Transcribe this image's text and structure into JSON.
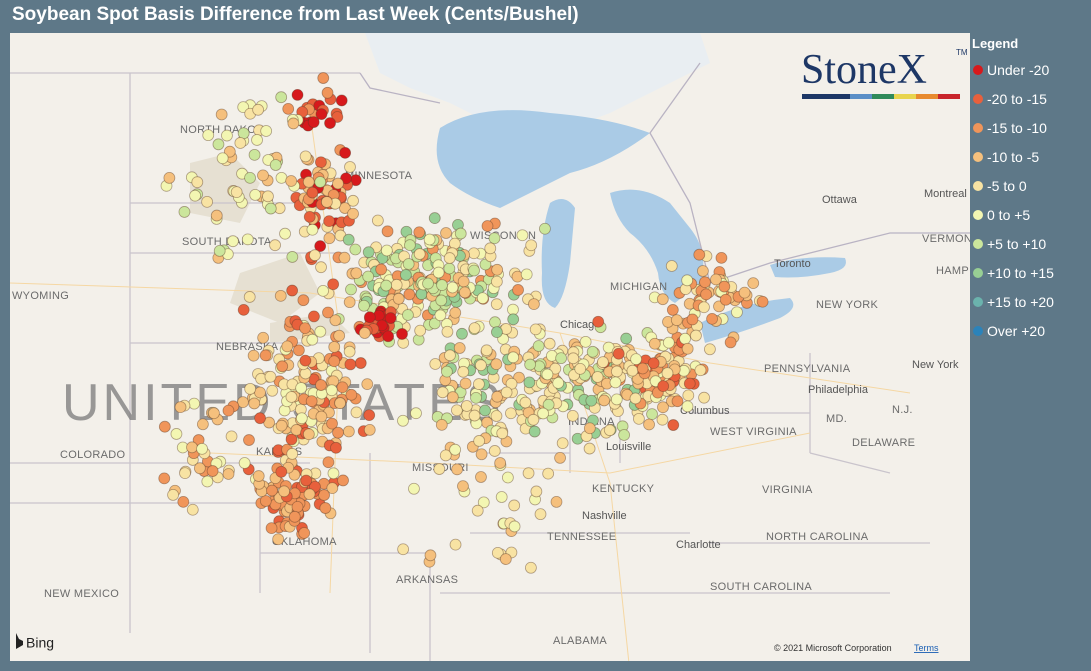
{
  "title": "Soybean Spot Basis Difference from Last Week (Cents/Bushel)",
  "logo": {
    "text": "StoneX",
    "mark": "TM"
  },
  "legend": {
    "title": "Legend",
    "items": [
      {
        "label": "Under -20",
        "color": "#d7191c"
      },
      {
        "label": "-20 to -15",
        "color": "#e8603c"
      },
      {
        "label": "-15 to -10",
        "color": "#f0955a"
      },
      {
        "label": "-10 to -5",
        "color": "#f5c07d"
      },
      {
        "label": "-5 to 0",
        "color": "#f8e3a3"
      },
      {
        "label": "0 to +5",
        "color": "#f3f6b2"
      },
      {
        "label": "+5 to +10",
        "color": "#cbe69c"
      },
      {
        "label": "+10 to +15",
        "color": "#98cf94"
      },
      {
        "label": "+15 to +20",
        "color": "#6bb3ad"
      },
      {
        "label": "Over +20",
        "color": "#2b83ba"
      }
    ]
  },
  "map": {
    "labels": [
      "NORTH DAKOTA",
      "MINNESOTA",
      "SOUTH DAKOTA",
      "WYOMING",
      "NEBRASKA",
      "UNITED STATES",
      "COLORADO",
      "KANSAS",
      "MISSOURI",
      "OKLAHOMA",
      "NEW MEXICO",
      "ARKANSAS",
      "TENNESSEE",
      "ALABAMA",
      "KENTUCKY",
      "INDIANA",
      "WISCONSIN",
      "MICHIGAN",
      "WEST VIRGINIA",
      "VIRGINIA",
      "NORTH CAROLINA",
      "SOUTH CAROLINA",
      "PENNSYLVANIA",
      "NEW YORK",
      "N.J.",
      "MD.",
      "DELAWARE",
      "VERMONT",
      "HAMP"
    ],
    "cities": [
      "Chicago",
      "Louisville",
      "Nashville",
      "Columbus",
      "Charlotte",
      "Philadelphia",
      "New York",
      "Toronto",
      "Ottawa",
      "Montreal"
    ]
  },
  "attribution": {
    "provider": "Bing",
    "copyright": "© 2021 Microsoft Corporation",
    "terms": "Terms"
  }
}
